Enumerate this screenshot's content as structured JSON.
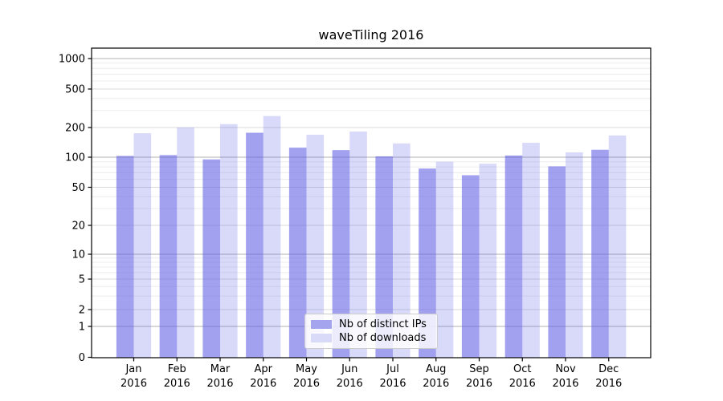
{
  "chart_data": {
    "type": "bar",
    "title": "waveTiling 2016",
    "year": "2016",
    "months": [
      "Jan",
      "Feb",
      "Mar",
      "Apr",
      "May",
      "Jun",
      "Jul",
      "Aug",
      "Sep",
      "Oct",
      "Nov",
      "Dec"
    ],
    "categories": [
      "Jan 2016",
      "Feb 2016",
      "Mar 2016",
      "Apr 2016",
      "May 2016",
      "Jun 2016",
      "Jul 2016",
      "Aug 2016",
      "Sep 2016",
      "Oct 2016",
      "Nov 2016",
      "Dec 2016"
    ],
    "series": [
      {
        "name": "Nb of distinct IPs",
        "values": [
          103,
          105,
          95,
          177,
          125,
          118,
          102,
          77,
          66,
          104,
          81,
          119
        ],
        "bar_color": "rgba(98,98,228,0.6)",
        "legend_color": "#a3a3ee"
      },
      {
        "name": "Nb of downloads",
        "values": [
          175,
          200,
          217,
          263,
          169,
          182,
          138,
          90,
          86,
          140,
          112,
          166
        ],
        "bar_color": "rgba(98,98,228,0.24)",
        "legend_color": "#d9d9f8"
      }
    ],
    "xlabel": "",
    "ylabel": "",
    "y_axis": {
      "scale": "log-like with linear-compressed region near zero",
      "ticks": [
        0,
        1,
        2,
        5,
        10,
        20,
        50,
        100,
        200,
        500,
        1000
      ],
      "minor_ticks": [
        3,
        4,
        6,
        7,
        8,
        9,
        30,
        40,
        60,
        70,
        80,
        90,
        300,
        400,
        600,
        700,
        800,
        900
      ],
      "ylim": [
        0,
        1400
      ]
    },
    "grid": true,
    "legend_position": "lower center (inside axes)",
    "colors": {
      "spine": "#000000",
      "tick_label": "#000000",
      "grid_major_power10": "#b0b0b0",
      "grid_labeled_other": "#d9d9d9",
      "grid_minor": "#ececec",
      "legend_border": "#cccccc"
    }
  }
}
